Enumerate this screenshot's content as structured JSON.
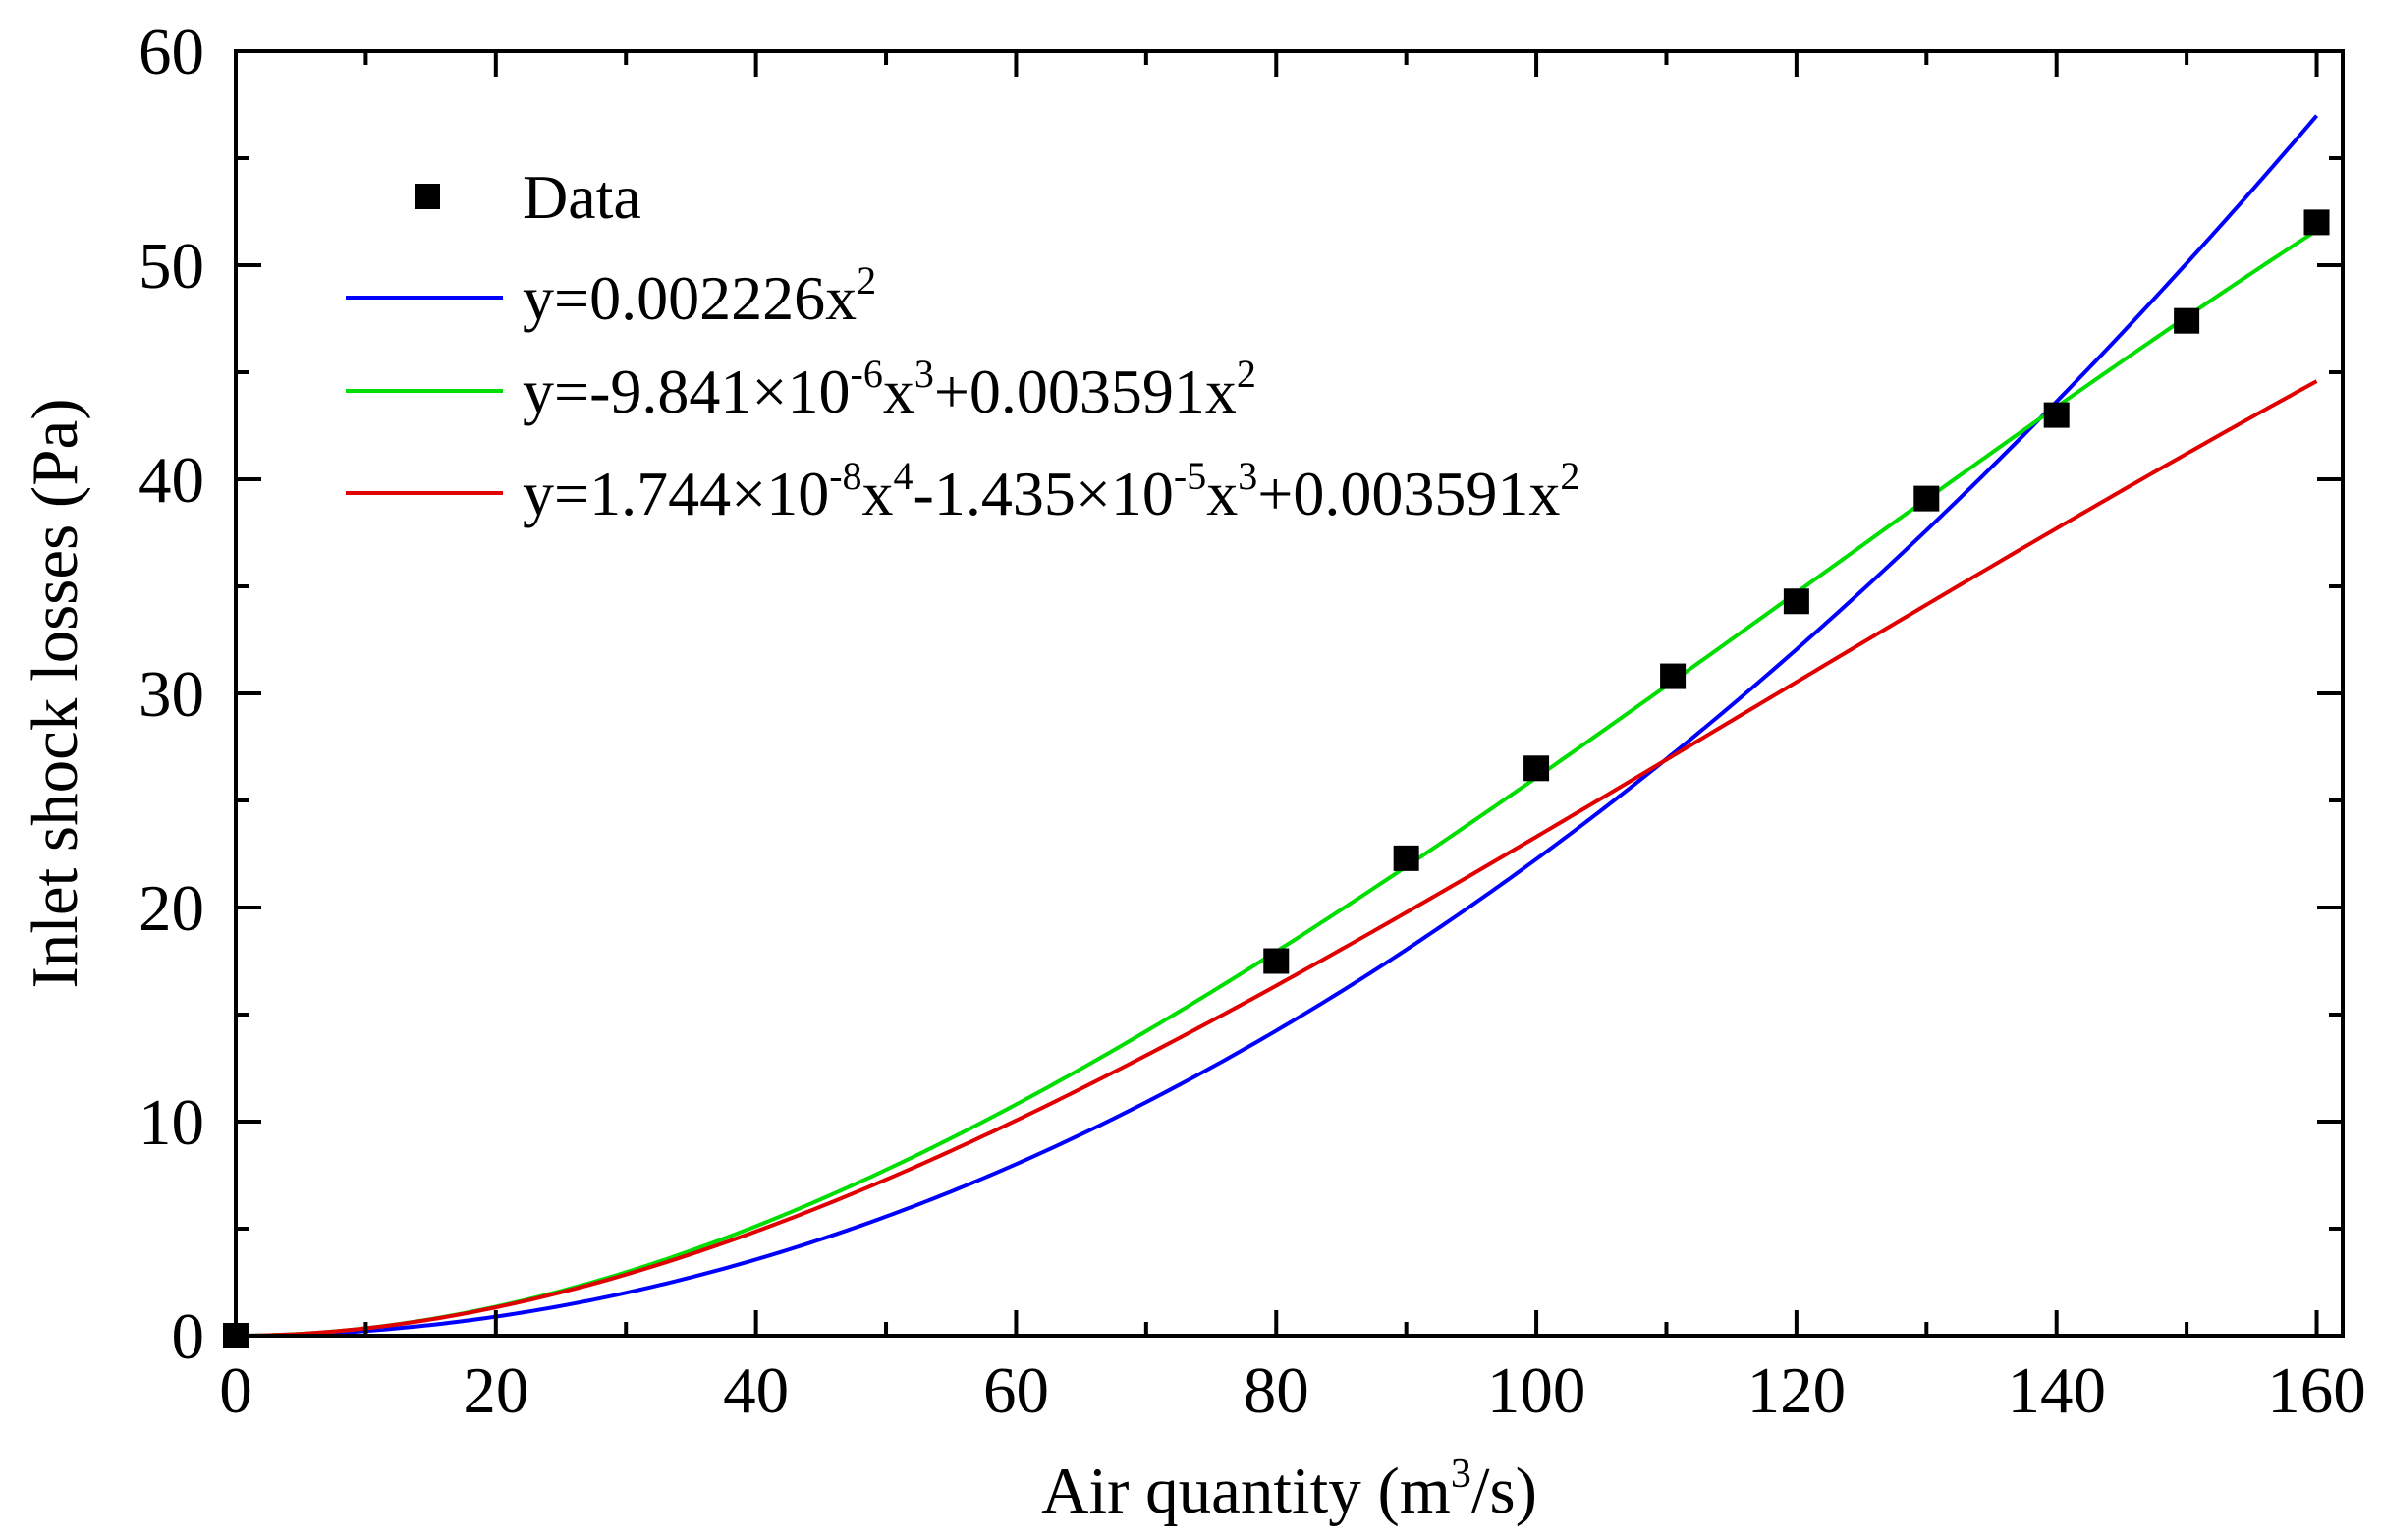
{
  "chart_data": {
    "type": "scatter",
    "title": "",
    "xlabel": {
      "main": "Air quantity (m",
      "sup": "3",
      "tail": "/s)"
    },
    "ylabel": "Inlet shock losses (Pa)",
    "xlim": [
      0,
      162
    ],
    "ylim": [
      0,
      60
    ],
    "xticks": [
      "0",
      "20",
      "40",
      "60",
      "80",
      "100",
      "120",
      "140",
      "160"
    ],
    "yticks": [
      "0",
      "10",
      "20",
      "30",
      "40",
      "50",
      "60"
    ],
    "legend_position": "top-left",
    "points": {
      "name": "Data",
      "x": [
        0,
        80,
        90,
        100,
        110.5,
        120,
        130,
        140,
        150,
        160
      ],
      "y": [
        0,
        17.5,
        22.3,
        26.5,
        30.8,
        34.3,
        39.1,
        43.0,
        47.4,
        52.0
      ]
    },
    "fits": [
      {
        "name": "fit-quadratic",
        "color": "#0000ff",
        "coefficients": {
          "x2": 0.002226,
          "x3": 0,
          "x4": 0
        },
        "label": [
          {
            "t": "y=0.002226x"
          },
          {
            "t": "2",
            "sup": true
          }
        ]
      },
      {
        "name": "fit-cubic",
        "color": "#00dd00",
        "coefficients": {
          "x2": 0.003591,
          "x3": -9.841e-06,
          "x4": 0
        },
        "label": [
          {
            "t": "y=-9.841×10"
          },
          {
            "t": "-6",
            "sup": true
          },
          {
            "t": "x"
          },
          {
            "t": "3",
            "sup": true
          },
          {
            "t": "+0.003591x"
          },
          {
            "t": "2",
            "sup": true
          }
        ]
      },
      {
        "name": "fit-quartic",
        "color": "#e00000",
        "coefficients": {
          "x2": 0.003591,
          "x3": -1.435e-05,
          "x4": 1.744e-08
        },
        "label": [
          {
            "t": "y=1.744×10"
          },
          {
            "t": "-8",
            "sup": true
          },
          {
            "t": "x"
          },
          {
            "t": "4",
            "sup": true
          },
          {
            "t": "-1.435×10"
          },
          {
            "t": "-5",
            "sup": true
          },
          {
            "t": "x"
          },
          {
            "t": "3",
            "sup": true
          },
          {
            "t": "+0.003591x"
          },
          {
            "t": "2",
            "sup": true
          }
        ]
      }
    ]
  }
}
